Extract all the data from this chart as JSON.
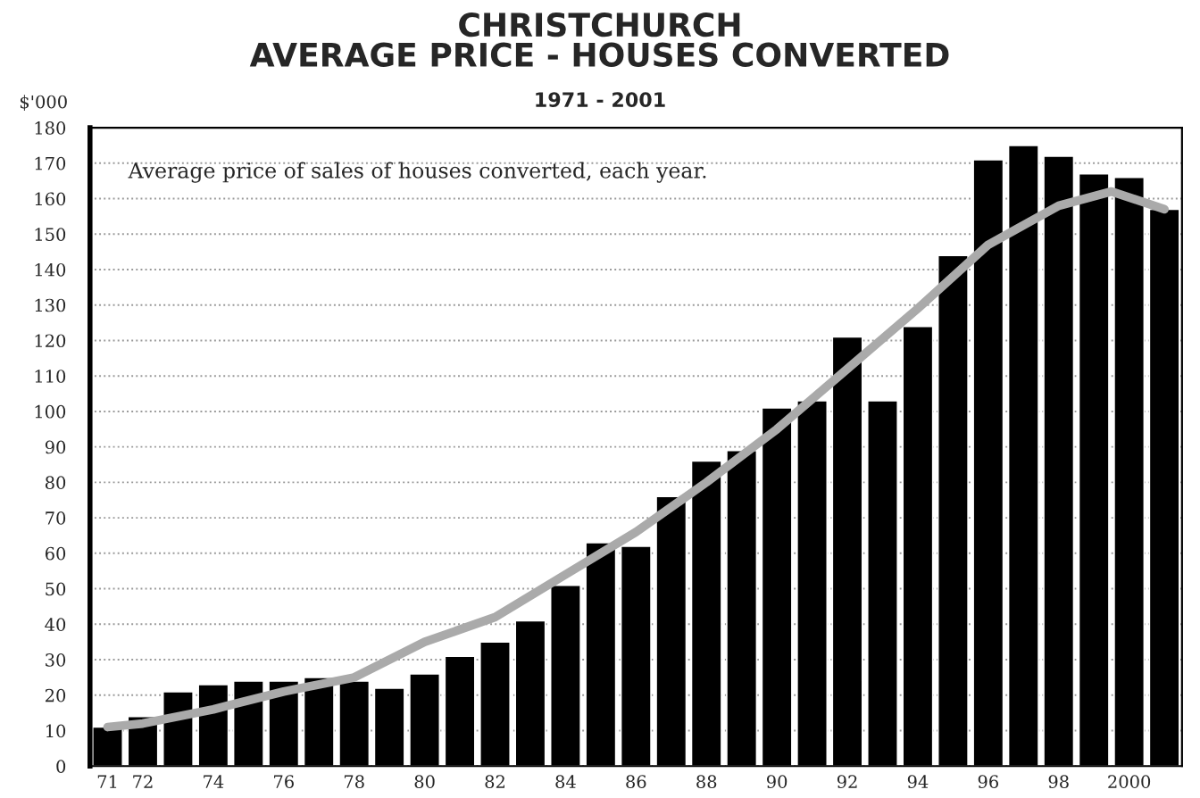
{
  "chart_data": {
    "type": "bar",
    "title": "CHRISTCHURCH\nAVERAGE PRICE - HOUSES CONVERTED",
    "subtitle": "1971 - 2001",
    "ylabel": "$'000",
    "annotations": [
      "Average price of sales of houses converted, each year."
    ],
    "x": [
      1971,
      1972,
      1973,
      1974,
      1975,
      1976,
      1977,
      1978,
      1979,
      1980,
      1981,
      1982,
      1983,
      1984,
      1985,
      1986,
      1987,
      1988,
      1989,
      1990,
      1991,
      1992,
      1993,
      1994,
      1995,
      1996,
      1997,
      1998,
      1999,
      2000,
      2001
    ],
    "series": [
      {
        "color": "#000000",
        "values": [
          11,
          14,
          21,
          23,
          24,
          24,
          25,
          24,
          22,
          26,
          31,
          35,
          41,
          51,
          63,
          62,
          76,
          86,
          89,
          101,
          103,
          121,
          103,
          124,
          144,
          171,
          175,
          172,
          167,
          166,
          157
        ]
      },
      {
        "type": "line",
        "color": "#aaaaaa",
        "x": [
          1971,
          1972,
          1974,
          1976,
          1978,
          1980,
          1982,
          1984,
          1986,
          1988,
          1990,
          1992,
          1994,
          1996,
          1998,
          1999.5,
          2001
        ],
        "values": [
          11,
          12,
          16,
          21,
          25,
          35,
          42,
          54,
          66,
          80,
          95,
          112,
          129,
          147,
          158,
          162,
          157
        ]
      }
    ],
    "xlim": [
      1970.5,
      2001.5
    ],
    "xticks": [
      {
        "value": 1971,
        "label": "71"
      },
      {
        "value": 1972,
        "label": "72"
      },
      {
        "value": 1974,
        "label": "74"
      },
      {
        "value": 1976,
        "label": "76"
      },
      {
        "value": 1978,
        "label": "78"
      },
      {
        "value": 1980,
        "label": "80"
      },
      {
        "value": 1982,
        "label": "82"
      },
      {
        "value": 1984,
        "label": "84"
      },
      {
        "value": 1986,
        "label": "86"
      },
      {
        "value": 1988,
        "label": "88"
      },
      {
        "value": 1990,
        "label": "90"
      },
      {
        "value": 1992,
        "label": "92"
      },
      {
        "value": 1994,
        "label": "94"
      },
      {
        "value": 1996,
        "label": "96"
      },
      {
        "value": 1998,
        "label": "98"
      },
      {
        "value": 2000,
        "label": "2000"
      }
    ],
    "ylim": [
      0,
      180
    ],
    "yticks": [
      0,
      10,
      20,
      30,
      40,
      50,
      60,
      70,
      80,
      90,
      100,
      110,
      120,
      130,
      140,
      150,
      160,
      170,
      180
    ],
    "grid": "y",
    "line_style": "solid",
    "marker": "none"
  }
}
